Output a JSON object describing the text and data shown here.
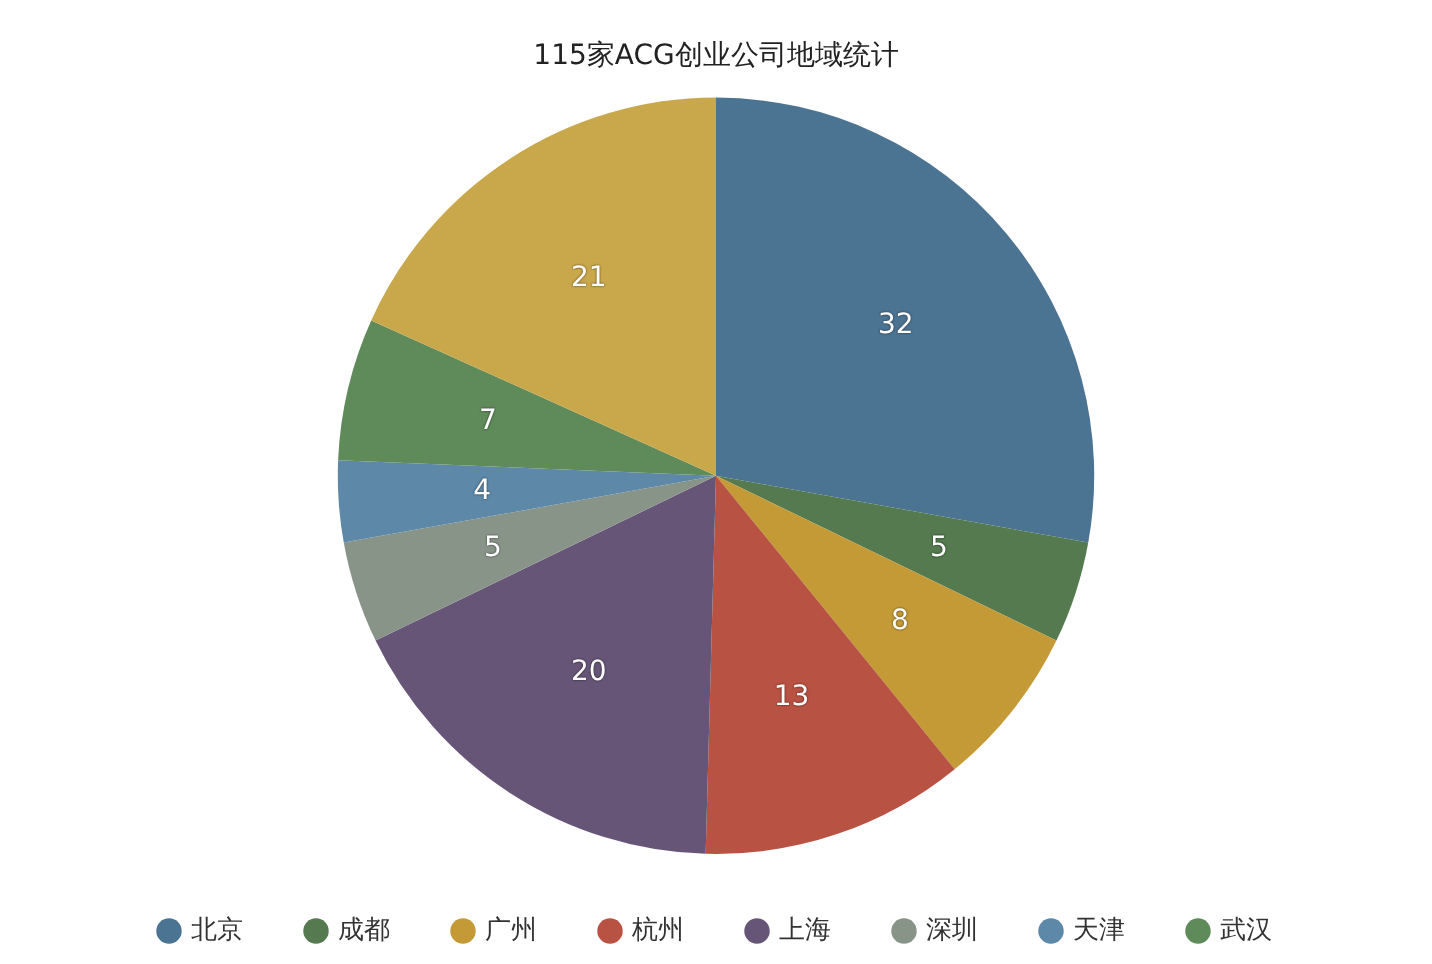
{
  "chart_data": {
    "type": "pie",
    "title": "115家ACG创业公司地域统计",
    "categories": [
      "北京",
      "成都",
      "广州",
      "杭州",
      "上海",
      "深圳",
      "天津",
      "武汉",
      null
    ],
    "values": [
      32,
      5,
      8,
      13,
      20,
      5,
      4,
      7,
      21
    ],
    "colors": [
      "#4b7392",
      "#557a4f",
      "#c49a36",
      "#b85243",
      "#665577",
      "#899489",
      "#5d88a8",
      "#5f8a5a",
      "#c9a74b"
    ],
    "data_labels": true,
    "legend": "bottom"
  }
}
